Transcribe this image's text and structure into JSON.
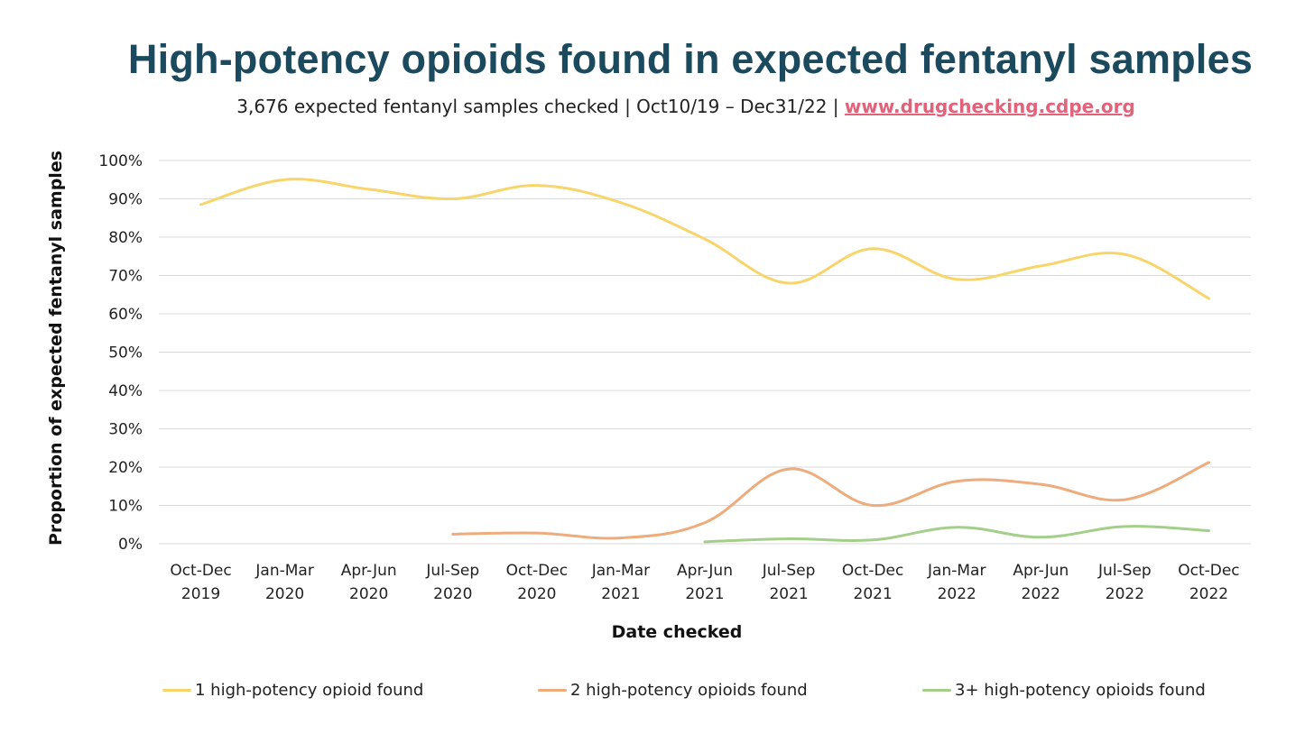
{
  "header": {
    "title": "High-potency opioids found in expected fentanyl samples",
    "subtitle_text": "3,676 expected fentanyl samples checked | Oct10/19 – Dec31/22 | ",
    "subtitle_link": "www.drugchecking.cdpe.org"
  },
  "colors": {
    "title": "#1b4a5e",
    "link": "#e2627a",
    "series1": "#f7d56b",
    "series2": "#eeab7c",
    "series3": "#a3cf8a",
    "grid": "#d9d9d9"
  },
  "chart_data": {
    "type": "line",
    "ylabel": "Proportion of expected fentanyl samples",
    "xlabel": "Date checked",
    "ylim": [
      0,
      100
    ],
    "yticks": [
      "0%",
      "10%",
      "20%",
      "30%",
      "40%",
      "50%",
      "60%",
      "70%",
      "80%",
      "90%",
      "100%"
    ],
    "categories": [
      [
        "Oct-Dec",
        "2019"
      ],
      [
        "Jan-Mar",
        "2020"
      ],
      [
        "Apr-Jun",
        "2020"
      ],
      [
        "Jul-Sep",
        "2020"
      ],
      [
        "Oct-Dec",
        "2020"
      ],
      [
        "Jan-Mar",
        "2021"
      ],
      [
        "Apr-Jun",
        "2021"
      ],
      [
        "Jul-Sep",
        "2021"
      ],
      [
        "Oct-Dec",
        "2021"
      ],
      [
        "Jan-Mar",
        "2022"
      ],
      [
        "Apr-Jun",
        "2022"
      ],
      [
        "Jul-Sep",
        "2022"
      ],
      [
        "Oct-Dec",
        "2022"
      ]
    ],
    "series": [
      {
        "name": "1 high-potency opioid found",
        "color": "#f7d56b",
        "values": [
          88.5,
          95,
          92.5,
          90,
          93.5,
          89,
          79.5,
          68,
          77,
          69,
          72.5,
          75.5,
          64
        ]
      },
      {
        "name": "2 high-potency opioids found",
        "color": "#eeab7c",
        "values": [
          null,
          null,
          null,
          2.5,
          2.8,
          1.5,
          5.5,
          19.5,
          10,
          16.3,
          15.5,
          11.5,
          21.2
        ]
      },
      {
        "name": "3+ high-potency opioids found",
        "color": "#a3cf8a",
        "values": [
          null,
          null,
          null,
          null,
          null,
          null,
          0.5,
          1.3,
          1,
          4.3,
          1.7,
          4.5,
          3.4
        ]
      }
    ]
  }
}
